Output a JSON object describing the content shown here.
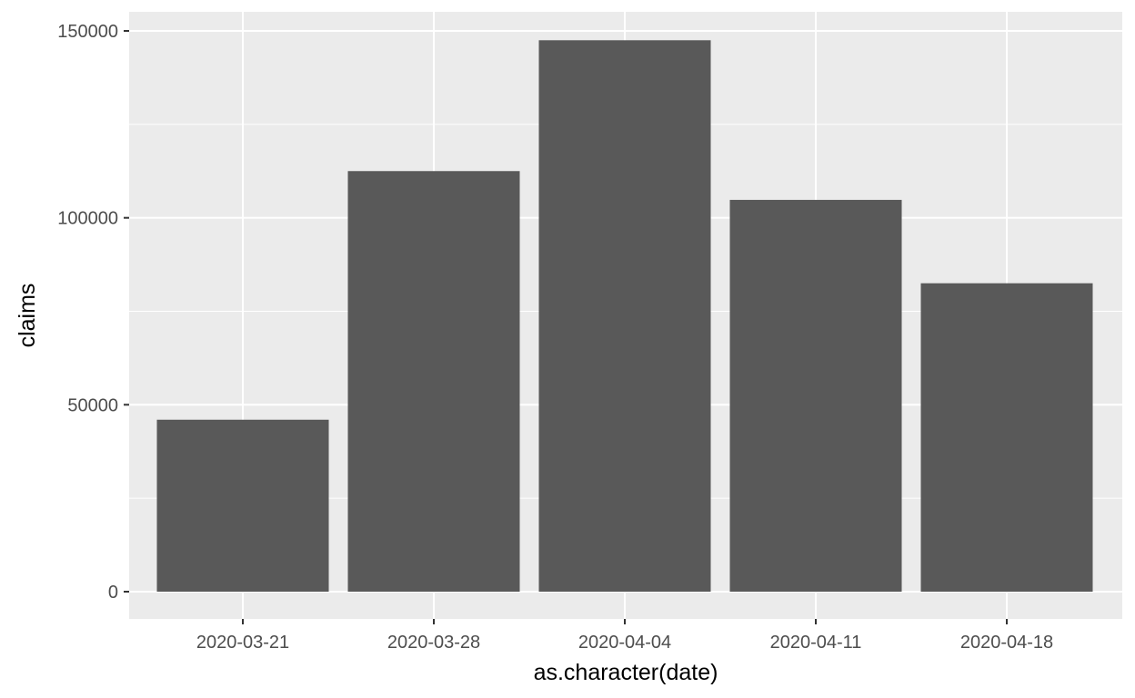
{
  "chart_data": {
    "type": "bar",
    "title": "",
    "xlabel": "as.character(date)",
    "ylabel": "claims",
    "categories": [
      "2020-03-21",
      "2020-03-28",
      "2020-04-04",
      "2020-04-11",
      "2020-04-18"
    ],
    "values": [
      46000,
      112500,
      147500,
      104800,
      82500
    ],
    "ylim": [
      0,
      150000
    ],
    "yticks": [
      0,
      50000,
      100000,
      150000
    ],
    "ytick_labels": [
      "0",
      "50000",
      "100000",
      "150000"
    ],
    "grid": true,
    "legend": "none",
    "colors": {
      "bar": "#595959",
      "panel": "#ebebeb",
      "grid": "#ffffff",
      "tick_text": "#4d4d4d",
      "tick_mark": "#333333"
    }
  }
}
